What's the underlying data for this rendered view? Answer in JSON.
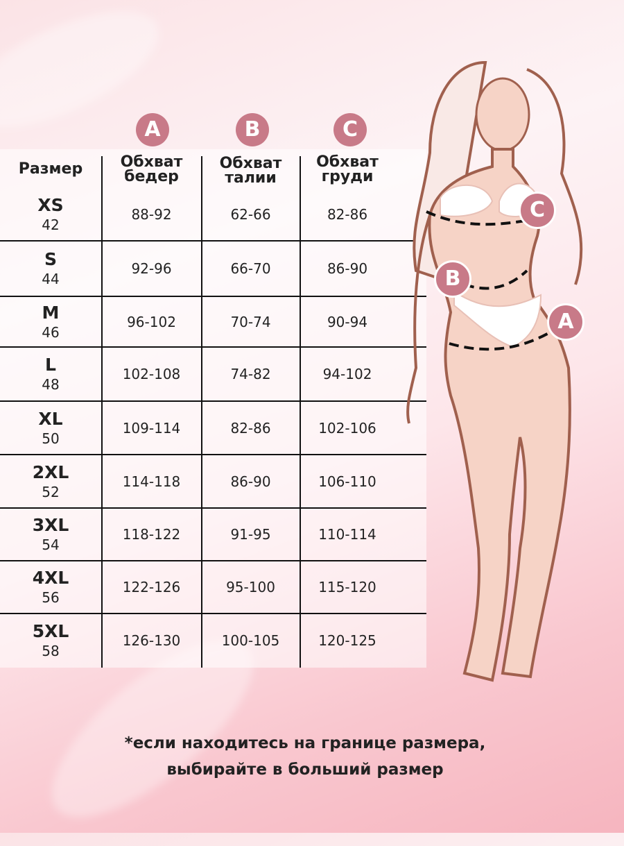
{
  "badges": {
    "hips": "A",
    "waist": "B",
    "bust": "C"
  },
  "table": {
    "headers": [
      "Размер",
      "Обхват бедер",
      "Обхват талии",
      "Обхват груди"
    ],
    "header_lines": [
      [
        "Обхват",
        "бедер"
      ],
      [
        "Обхват",
        "талии"
      ],
      [
        "Обхват",
        "груди"
      ]
    ],
    "rows": [
      {
        "size": "XS",
        "ru": "42",
        "hips": "88-92",
        "waist": "62-66",
        "bust": "82-86"
      },
      {
        "size": "S",
        "ru": "44",
        "hips": "92-96",
        "waist": "66-70",
        "bust": "86-90"
      },
      {
        "size": "M",
        "ru": "46",
        "hips": "96-102",
        "waist": "70-74",
        "bust": "90-94"
      },
      {
        "size": "L",
        "ru": "48",
        "hips": "102-108",
        "waist": "74-82",
        "bust": "94-102"
      },
      {
        "size": "XL",
        "ru": "50",
        "hips": "109-114",
        "waist": "82-86",
        "bust": "102-106"
      },
      {
        "size": "2XL",
        "ru": "52",
        "hips": "114-118",
        "waist": "86-90",
        "bust": "106-110"
      },
      {
        "size": "3XL",
        "ru": "54",
        "hips": "118-122",
        "waist": "91-95",
        "bust": "110-114"
      },
      {
        "size": "4XL",
        "ru": "56",
        "hips": "122-126",
        "waist": "95-100",
        "bust": "115-120"
      },
      {
        "size": "5XL",
        "ru": "58",
        "hips": "126-130",
        "waist": "100-105",
        "bust": "120-125"
      }
    ]
  },
  "footnote": {
    "line1": "*если находитесь на границе размера,",
    "line2": "выбирайте в больший размер"
  },
  "colors": {
    "badge": "#c87a88",
    "outline": "#a0604e",
    "skin": "#f6d3c6"
  }
}
